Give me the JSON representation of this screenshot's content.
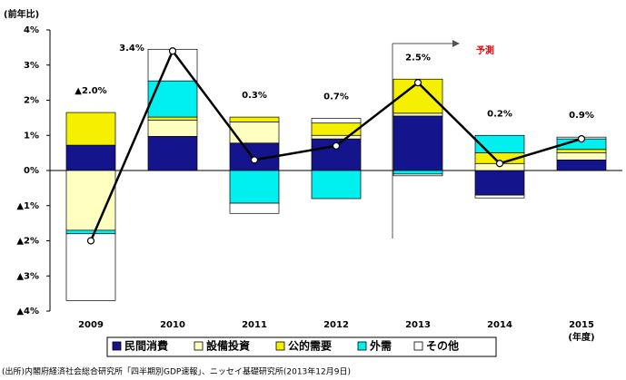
{
  "chart_data": {
    "type": "bar",
    "stacked": true,
    "y_label": "(前年比)",
    "x_unit": "(年度)",
    "source": "(出所)内閣府経済社会総合研究所「四半期別GDP速報」、ニッセイ基礎研究所(2013年12月9日)",
    "forecast_label": "予測",
    "categories": [
      "2009",
      "2010",
      "2011",
      "2012",
      "2013",
      "2014",
      "2015"
    ],
    "ylim": [
      -4,
      4
    ],
    "yticks": [
      {
        "value": -4,
        "label": "▲4%"
      },
      {
        "value": -3,
        "label": "▲3%"
      },
      {
        "value": -2,
        "label": "▲2%"
      },
      {
        "value": -1,
        "label": "▲1%"
      },
      {
        "value": 0,
        "label": "0%"
      },
      {
        "value": 1,
        "label": "1%"
      },
      {
        "value": 2,
        "label": "2%"
      },
      {
        "value": 3,
        "label": "3%"
      },
      {
        "value": 4,
        "label": "4%"
      }
    ],
    "series": [
      {
        "name": "民間消費",
        "color": "#14148c",
        "values": [
          0.72,
          0.97,
          0.78,
          0.9,
          1.55,
          -0.7,
          0.3
        ]
      },
      {
        "name": "設備投資",
        "color": "#ffffc0",
        "values": [
          -1.7,
          0.46,
          0.6,
          0.1,
          0.08,
          0.2,
          0.2
        ]
      },
      {
        "name": "公的需要",
        "color": "#f5f000",
        "values": [
          0.93,
          0.09,
          0.14,
          0.35,
          0.97,
          0.3,
          0.1
        ]
      },
      {
        "name": "外需",
        "color": "#00f0f0",
        "values": [
          -0.1,
          1.03,
          -0.93,
          -0.8,
          -0.1,
          0.5,
          0.3
        ]
      },
      {
        "name": "その他",
        "color": "#ffffff",
        "values": [
          -1.9,
          0.9,
          -0.29,
          0.13,
          -0.05,
          -0.08,
          0.05
        ]
      }
    ],
    "line": {
      "type": "line",
      "color": "#000000",
      "values": [
        -2.0,
        3.4,
        0.3,
        0.7,
        2.5,
        0.2,
        0.9
      ],
      "value_labels": [
        "▲2.0%",
        "3.4%",
        "0.3%",
        "0.7%",
        "2.5%",
        "0.2%",
        "0.9%"
      ]
    }
  }
}
